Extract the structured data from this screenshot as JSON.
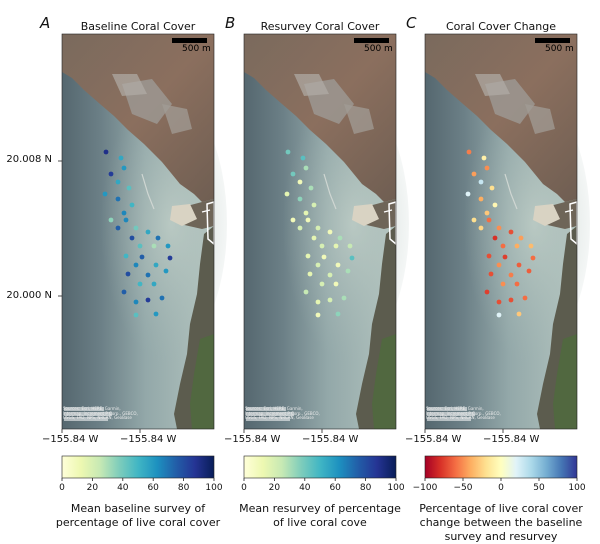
{
  "panels": [
    {
      "letter": "A",
      "title": "Baseline Coral Cover",
      "cmap": "ylgnbu",
      "cbar_ticks": [
        "0",
        "20",
        "40",
        "60",
        "80",
        "100"
      ],
      "cbar_range": [
        0,
        100
      ],
      "cbar_label": [
        "Mean baseline survey of",
        "percentage of live coral cover"
      ]
    },
    {
      "letter": "B",
      "title": "Resurvey Coral Cover",
      "cmap": "ylgnbu",
      "cbar_ticks": [
        "0",
        "20",
        "40",
        "60",
        "80",
        "100"
      ],
      "cbar_range": [
        0,
        100
      ],
      "cbar_label": [
        "Mean resurvey of percentage",
        "of live coral cove"
      ]
    },
    {
      "letter": "C",
      "title": "Coral Cover Change",
      "cmap": "rdylbu",
      "cbar_ticks": [
        "−100",
        "−50",
        "0",
        "50",
        "100"
      ],
      "cbar_range": [
        -100,
        100
      ],
      "cbar_label": [
        "Percentage of live coral cover",
        "change between the baseline",
        "survey and resurvey"
      ]
    }
  ],
  "axes": {
    "yticks": [
      "20.008 N",
      "20.000 N"
    ],
    "xticks": [
      "−155.84 W",
      "−155.84 W"
    ]
  },
  "scale_bar": {
    "label": "500 m"
  },
  "attribution": [
    "Sources: Esri, HERE, Garmin,",
    "Intermap, increment P Corp., GEBCO,",
    "USGS, FAO, NPS, NRCAN, GeoBase"
  ],
  "colors": {
    "ylgnbu_low": "#ffffd9",
    "ylgnbu_high": "#081d58",
    "rdylbu_low": "#a50026",
    "rdylbu_mid": "#fefee0",
    "rdylbu_high": "#313695"
  },
  "survey_sites": [
    {
      "baseline": 90,
      "resurvey": 40,
      "change": -55
    },
    {
      "baseline": 55,
      "resurvey": 45,
      "change": -10
    },
    {
      "baseline": 60,
      "resurvey": 30,
      "change": -50
    },
    {
      "baseline": 85,
      "resurvey": 40,
      "change": -45
    },
    {
      "baseline": 55,
      "resurvey": 10,
      "change": 30
    },
    {
      "baseline": 45,
      "resurvey": 30,
      "change": -20
    },
    {
      "baseline": 60,
      "resurvey": 15,
      "change": 20
    },
    {
      "baseline": 70,
      "resurvey": 35,
      "change": -40
    },
    {
      "baseline": 50,
      "resurvey": 20,
      "change": -5
    },
    {
      "baseline": 65,
      "resurvey": 15,
      "change": -30
    },
    {
      "baseline": 35,
      "resurvey": 10,
      "change": -20
    },
    {
      "baseline": 75,
      "resurvey": 20,
      "change": -25
    },
    {
      "baseline": 65,
      "resurvey": 10,
      "change": -60
    },
    {
      "baseline": 40,
      "resurvey": 20,
      "change": -50
    },
    {
      "baseline": 80,
      "resurvey": 15,
      "change": -80
    },
    {
      "baseline": 55,
      "resurvey": 10,
      "change": -70
    },
    {
      "baseline": 70,
      "resurvey": 30,
      "change": -45
    },
    {
      "baseline": 45,
      "resurvey": 20,
      "change": -60
    },
    {
      "baseline": 30,
      "resurvey": 15,
      "change": -40
    },
    {
      "baseline": 60,
      "resurvey": 25,
      "change": -35
    },
    {
      "baseline": 75,
      "resurvey": 10,
      "change": -75
    },
    {
      "baseline": 85,
      "resurvey": 45,
      "change": -60
    },
    {
      "baseline": 50,
      "resurvey": 15,
      "change": -70
    },
    {
      "baseline": 65,
      "resurvey": 20,
      "change": -50
    },
    {
      "baseline": 55,
      "resurvey": 10,
      "change": -65
    },
    {
      "baseline": 70,
      "resurvey": 20,
      "change": -55
    },
    {
      "baseline": 60,
      "resurvey": 30,
      "change": -65
    },
    {
      "baseline": 80,
      "resurvey": 15,
      "change": -70
    },
    {
      "baseline": 50,
      "resurvey": 20,
      "change": -50
    },
    {
      "baseline": 55,
      "resurvey": 10,
      "change": -60
    },
    {
      "baseline": 75,
      "resurvey": 25,
      "change": -75
    },
    {
      "baseline": 65,
      "resurvey": 15,
      "change": -70
    },
    {
      "baseline": 85,
      "resurvey": 20,
      "change": -70
    },
    {
      "baseline": 70,
      "resurvey": 30,
      "change": -60
    },
    {
      "baseline": 45,
      "resurvey": 10,
      "change": 20
    },
    {
      "baseline": 60,
      "resurvey": 35,
      "change": -30
    }
  ]
}
